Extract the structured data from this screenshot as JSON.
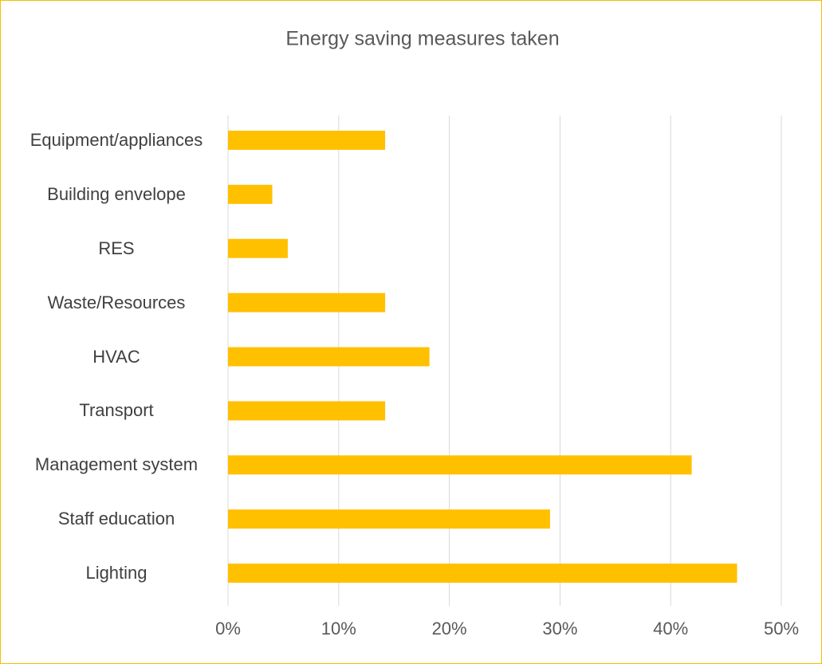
{
  "chart_data": {
    "type": "hbar",
    "title": "Energy saving measures taken",
    "categories": [
      "Equipment/appliances",
      "Building envelope",
      "RES",
      "Waste/Resources",
      "HVAC",
      "Transport",
      "Management system",
      "Staff education",
      "Lighting"
    ],
    "values": [
      14.2,
      4.0,
      5.4,
      14.2,
      18.2,
      14.2,
      41.9,
      29.1,
      46.0
    ],
    "color": "#ffc000",
    "xlim": [
      0,
      50
    ],
    "xticks": [
      {
        "value": 0,
        "label": "0%"
      },
      {
        "value": 10,
        "label": "10%"
      },
      {
        "value": 20,
        "label": "20%"
      },
      {
        "value": 30,
        "label": "30%"
      },
      {
        "value": 40,
        "label": "40%"
      },
      {
        "value": 50,
        "label": "50%"
      }
    ],
    "grid": true
  }
}
